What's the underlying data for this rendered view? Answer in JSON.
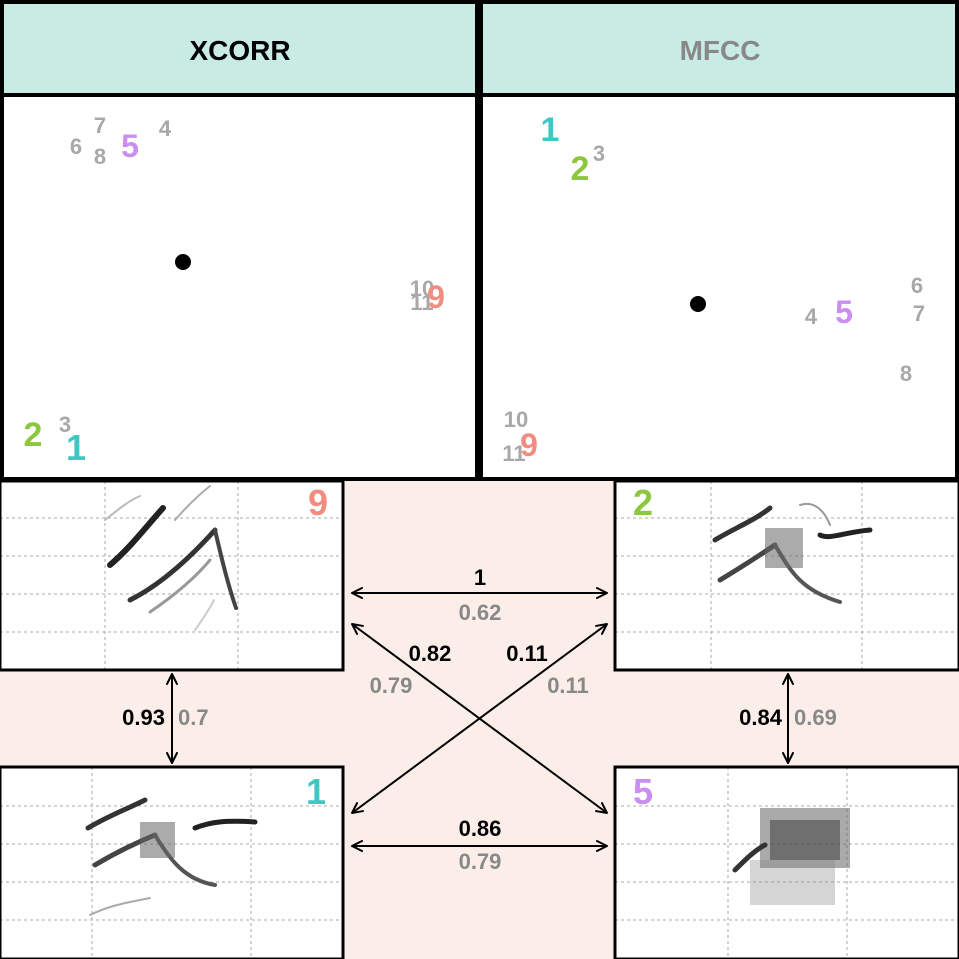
{
  "headers": {
    "left": "XCORR",
    "right": "MFCC"
  },
  "colors": {
    "header_bg": "#c8ebe3",
    "mid_bg": "#fbeee8",
    "label_1": "#3fc7c4",
    "label_2": "#8dc63f",
    "label_5": "#c98ef0",
    "label_9": "#f28c80",
    "label_gray": "#a8a8a8",
    "mfcc_value": "#888888",
    "xcorr_value": "#000000"
  },
  "xcorr_points": [
    {
      "label": "1",
      "highlight": "label_1"
    },
    {
      "label": "2",
      "highlight": "label_2"
    },
    {
      "label": "3",
      "highlight": "label_gray"
    },
    {
      "label": "4",
      "highlight": "label_gray"
    },
    {
      "label": "5",
      "highlight": "label_5"
    },
    {
      "label": "6",
      "highlight": "label_gray"
    },
    {
      "label": "7",
      "highlight": "label_gray"
    },
    {
      "label": "8",
      "highlight": "label_gray"
    },
    {
      "label": "9",
      "highlight": "label_9"
    },
    {
      "label": "10",
      "highlight": "label_gray"
    },
    {
      "label": "11",
      "highlight": "label_gray"
    }
  ],
  "mfcc_points": [
    {
      "label": "1",
      "highlight": "label_1"
    },
    {
      "label": "2",
      "highlight": "label_2"
    },
    {
      "label": "3",
      "highlight": "label_gray"
    },
    {
      "label": "4",
      "highlight": "label_gray"
    },
    {
      "label": "5",
      "highlight": "label_5"
    },
    {
      "label": "6",
      "highlight": "label_gray"
    },
    {
      "label": "7",
      "highlight": "label_gray"
    },
    {
      "label": "8",
      "highlight": "label_gray"
    },
    {
      "label": "9",
      "highlight": "label_9"
    },
    {
      "label": "10",
      "highlight": "label_gray"
    },
    {
      "label": "11",
      "highlight": "label_gray"
    }
  ],
  "spectrograms": {
    "top_left": "9",
    "top_right": "2",
    "bottom_left": "1",
    "bottom_right": "5"
  },
  "similarities": {
    "top_9_2": {
      "xcorr": "1",
      "mfcc": "0.62"
    },
    "bottom_1_5": {
      "xcorr": "0.86",
      "mfcc": "0.79"
    },
    "left_9_1": {
      "xcorr": "0.93",
      "mfcc": "0.7"
    },
    "right_2_5": {
      "xcorr": "0.84",
      "mfcc": "0.69"
    },
    "diag_9_5": {
      "xcorr": "0.82",
      "mfcc": "0.79"
    },
    "diag_1_2": {
      "xcorr": "0.11",
      "mfcc": "0.11"
    }
  }
}
